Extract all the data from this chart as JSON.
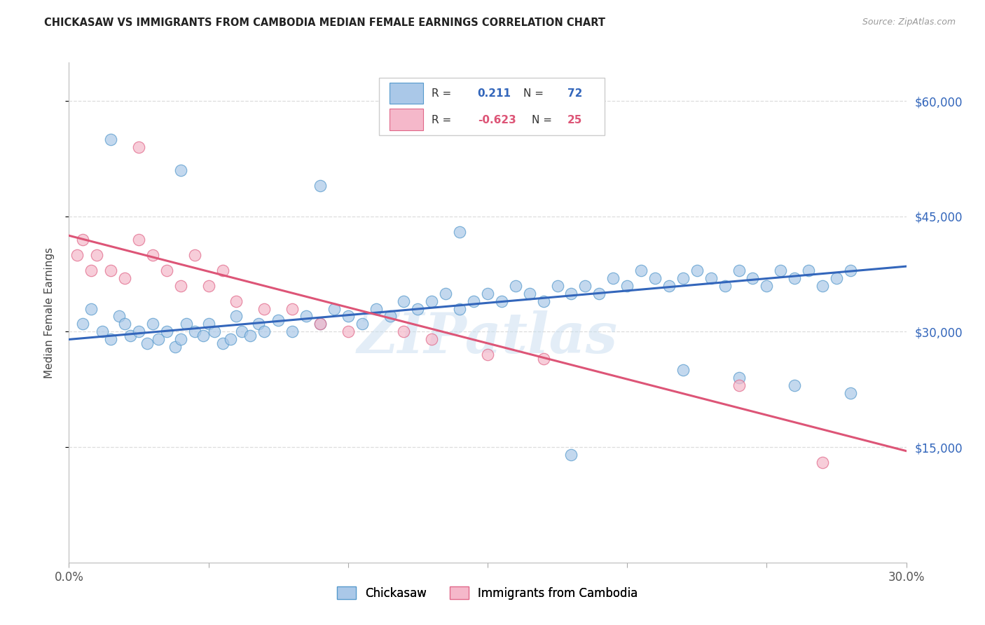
{
  "title": "CHICKASAW VS IMMIGRANTS FROM CAMBODIA MEDIAN FEMALE EARNINGS CORRELATION CHART",
  "source": "Source: ZipAtlas.com",
  "ylabel": "Median Female Earnings",
  "yticks": [
    15000,
    30000,
    45000,
    60000
  ],
  "ytick_labels": [
    "$15,000",
    "$30,000",
    "$45,000",
    "$60,000"
  ],
  "watermark": "ZIPatlas",
  "legend_labels": [
    "Chickasaw",
    "Immigrants from Cambodia"
  ],
  "blue_R": "0.211",
  "blue_N": "72",
  "pink_R": "-0.623",
  "pink_N": "25",
  "blue_color": "#aac8e8",
  "pink_color": "#f5b8ca",
  "blue_edge_color": "#5599cc",
  "pink_edge_color": "#e06688",
  "blue_line_color": "#3366bb",
  "pink_line_color": "#dd5577",
  "blue_scatter_x": [
    0.5,
    0.8,
    1.2,
    1.5,
    1.8,
    2.0,
    2.2,
    2.5,
    2.8,
    3.0,
    3.2,
    3.5,
    3.8,
    4.0,
    4.2,
    4.5,
    4.8,
    5.0,
    5.2,
    5.5,
    5.8,
    6.0,
    6.2,
    6.5,
    6.8,
    7.0,
    7.5,
    8.0,
    8.5,
    9.0,
    9.5,
    10.0,
    10.5,
    11.0,
    11.5,
    12.0,
    12.5,
    13.0,
    13.5,
    14.0,
    14.5,
    15.0,
    15.5,
    16.0,
    16.5,
    17.0,
    17.5,
    18.0,
    18.5,
    19.0,
    19.5,
    20.0,
    20.5,
    21.0,
    21.5,
    22.0,
    22.5,
    23.0,
    23.5,
    24.0,
    24.5,
    25.0,
    25.5,
    26.0,
    26.5,
    27.0,
    27.5,
    28.0,
    22.0,
    24.0,
    26.0,
    28.0
  ],
  "blue_scatter_y": [
    31000,
    33000,
    30000,
    29000,
    32000,
    31000,
    29500,
    30000,
    28500,
    31000,
    29000,
    30000,
    28000,
    29000,
    31000,
    30000,
    29500,
    31000,
    30000,
    28500,
    29000,
    32000,
    30000,
    29500,
    31000,
    30000,
    31500,
    30000,
    32000,
    31000,
    33000,
    32000,
    31000,
    33000,
    32000,
    34000,
    33000,
    34000,
    35000,
    33000,
    34000,
    35000,
    34000,
    36000,
    35000,
    34000,
    36000,
    35000,
    36000,
    35000,
    37000,
    36000,
    38000,
    37000,
    36000,
    37000,
    38000,
    37000,
    36000,
    38000,
    37000,
    36000,
    38000,
    37000,
    38000,
    36000,
    37000,
    38000,
    25000,
    24000,
    23000,
    22000
  ],
  "blue_scatter_x2": [
    1.5,
    4.0,
    9.0,
    14.0,
    18.0
  ],
  "blue_scatter_y2": [
    55000,
    51000,
    49000,
    43000,
    14000
  ],
  "pink_scatter_x": [
    0.3,
    0.5,
    0.8,
    1.0,
    1.5,
    2.0,
    2.5,
    3.0,
    3.5,
    4.0,
    4.5,
    5.0,
    5.5,
    6.0,
    7.0,
    8.0,
    9.0,
    10.0,
    12.0,
    13.0,
    15.0,
    17.0,
    24.0,
    27.0,
    2.5
  ],
  "pink_scatter_y": [
    40000,
    42000,
    38000,
    40000,
    38000,
    37000,
    42000,
    40000,
    38000,
    36000,
    40000,
    36000,
    38000,
    34000,
    33000,
    33000,
    31000,
    30000,
    30000,
    29000,
    27000,
    26500,
    23000,
    13000,
    54000
  ],
  "blue_line_x": [
    0.0,
    30.0
  ],
  "blue_line_y": [
    29000,
    38500
  ],
  "pink_line_x": [
    0.0,
    30.0
  ],
  "pink_line_y": [
    42500,
    14500
  ],
  "xlim": [
    0,
    30.0
  ],
  "ylim": [
    0,
    65000
  ],
  "xticks": [
    0,
    5,
    10,
    15,
    20,
    25,
    30
  ],
  "xtick_labels": [
    "0.0%",
    "",
    "",
    "",
    "",
    "",
    "30.0%"
  ],
  "background_color": "#ffffff",
  "grid_color": "#dddddd"
}
